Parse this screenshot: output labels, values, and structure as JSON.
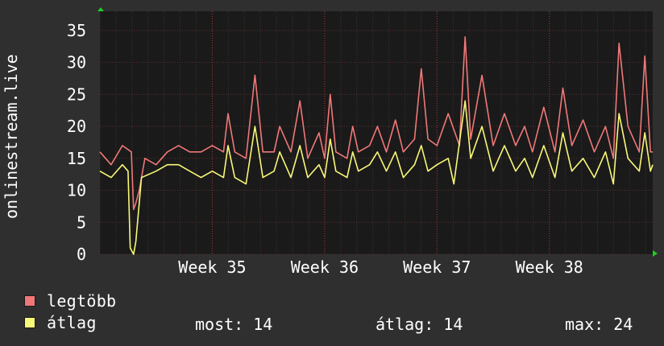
{
  "chart_data": {
    "type": "line",
    "ylabel": "onlinestream.live",
    "ylim": [
      0,
      38
    ],
    "yticks": [
      0,
      5,
      10,
      15,
      20,
      25,
      30,
      35
    ],
    "x_range_weeks": [
      34.0,
      38.92
    ],
    "xticks": [
      {
        "label": "Week 35",
        "pos": 35.0
      },
      {
        "label": "Week 36",
        "pos": 36.0
      },
      {
        "label": "Week 37",
        "pos": 37.0
      },
      {
        "label": "Week 38",
        "pos": 38.0
      }
    ],
    "grid": true,
    "series": [
      {
        "name": "legtöbb",
        "color": "#f07878",
        "points": [
          [
            34.0,
            16
          ],
          [
            34.1,
            14
          ],
          [
            34.2,
            17
          ],
          [
            34.28,
            16
          ],
          [
            34.3,
            7
          ],
          [
            34.32,
            8
          ],
          [
            34.35,
            10
          ],
          [
            34.4,
            15
          ],
          [
            34.5,
            14
          ],
          [
            34.6,
            16
          ],
          [
            34.7,
            17
          ],
          [
            34.8,
            16
          ],
          [
            34.9,
            16
          ],
          [
            35.0,
            17
          ],
          [
            35.1,
            16
          ],
          [
            35.14,
            22
          ],
          [
            35.2,
            16
          ],
          [
            35.3,
            15
          ],
          [
            35.38,
            28
          ],
          [
            35.45,
            16
          ],
          [
            35.55,
            16
          ],
          [
            35.6,
            20
          ],
          [
            35.7,
            16
          ],
          [
            35.78,
            24
          ],
          [
            35.85,
            15
          ],
          [
            35.95,
            19
          ],
          [
            36.0,
            15
          ],
          [
            36.05,
            25
          ],
          [
            36.1,
            16
          ],
          [
            36.2,
            15
          ],
          [
            36.25,
            20
          ],
          [
            36.3,
            16
          ],
          [
            36.4,
            17
          ],
          [
            36.47,
            20
          ],
          [
            36.55,
            16
          ],
          [
            36.63,
            21
          ],
          [
            36.7,
            16
          ],
          [
            36.8,
            18
          ],
          [
            36.86,
            29
          ],
          [
            36.92,
            18
          ],
          [
            37.0,
            17
          ],
          [
            37.1,
            22
          ],
          [
            37.2,
            17
          ],
          [
            37.25,
            34
          ],
          [
            37.3,
            18
          ],
          [
            37.4,
            28
          ],
          [
            37.5,
            17
          ],
          [
            37.6,
            22
          ],
          [
            37.7,
            17
          ],
          [
            37.78,
            20
          ],
          [
            37.85,
            16
          ],
          [
            37.95,
            23
          ],
          [
            38.05,
            16
          ],
          [
            38.12,
            26
          ],
          [
            38.2,
            17
          ],
          [
            38.3,
            21
          ],
          [
            38.4,
            16
          ],
          [
            38.5,
            20
          ],
          [
            38.57,
            15
          ],
          [
            38.62,
            33
          ],
          [
            38.7,
            20
          ],
          [
            38.8,
            16
          ],
          [
            38.85,
            31
          ],
          [
            38.9,
            16
          ],
          [
            38.92,
            16
          ]
        ]
      },
      {
        "name": "átlag",
        "color": "#f8f878",
        "points": [
          [
            34.0,
            13
          ],
          [
            34.1,
            12
          ],
          [
            34.2,
            14
          ],
          [
            34.25,
            13
          ],
          [
            34.27,
            1
          ],
          [
            34.3,
            0
          ],
          [
            34.32,
            2
          ],
          [
            34.37,
            12
          ],
          [
            34.5,
            13
          ],
          [
            34.6,
            14
          ],
          [
            34.7,
            14
          ],
          [
            34.8,
            13
          ],
          [
            34.9,
            12
          ],
          [
            35.0,
            13
          ],
          [
            35.1,
            12
          ],
          [
            35.14,
            17
          ],
          [
            35.2,
            12
          ],
          [
            35.3,
            11
          ],
          [
            35.38,
            20
          ],
          [
            35.45,
            12
          ],
          [
            35.55,
            13
          ],
          [
            35.6,
            16
          ],
          [
            35.7,
            12
          ],
          [
            35.78,
            17
          ],
          [
            35.85,
            12
          ],
          [
            35.95,
            14
          ],
          [
            36.0,
            12
          ],
          [
            36.05,
            18
          ],
          [
            36.1,
            13
          ],
          [
            36.2,
            12
          ],
          [
            36.25,
            16
          ],
          [
            36.3,
            13
          ],
          [
            36.4,
            14
          ],
          [
            36.47,
            16
          ],
          [
            36.55,
            13
          ],
          [
            36.63,
            16
          ],
          [
            36.7,
            12
          ],
          [
            36.8,
            14
          ],
          [
            36.86,
            17
          ],
          [
            36.92,
            13
          ],
          [
            37.0,
            14
          ],
          [
            37.1,
            15
          ],
          [
            37.15,
            11
          ],
          [
            37.25,
            24
          ],
          [
            37.3,
            15
          ],
          [
            37.4,
            20
          ],
          [
            37.5,
            13
          ],
          [
            37.6,
            17
          ],
          [
            37.7,
            13
          ],
          [
            37.78,
            15
          ],
          [
            37.85,
            12
          ],
          [
            37.95,
            17
          ],
          [
            38.05,
            12
          ],
          [
            38.12,
            19
          ],
          [
            38.2,
            13
          ],
          [
            38.3,
            15
          ],
          [
            38.4,
            12
          ],
          [
            38.5,
            16
          ],
          [
            38.57,
            11
          ],
          [
            38.62,
            22
          ],
          [
            38.7,
            15
          ],
          [
            38.8,
            13
          ],
          [
            38.85,
            19
          ],
          [
            38.9,
            13
          ],
          [
            38.92,
            14
          ]
        ]
      }
    ]
  },
  "legend": {
    "max_label": "legtöbb",
    "avg_label": "átlag",
    "max_color": "#f07878",
    "avg_color": "#f8f878"
  },
  "stats": {
    "now": "most: 14",
    "avg": "átlag: 14",
    "max": "max: 24"
  }
}
